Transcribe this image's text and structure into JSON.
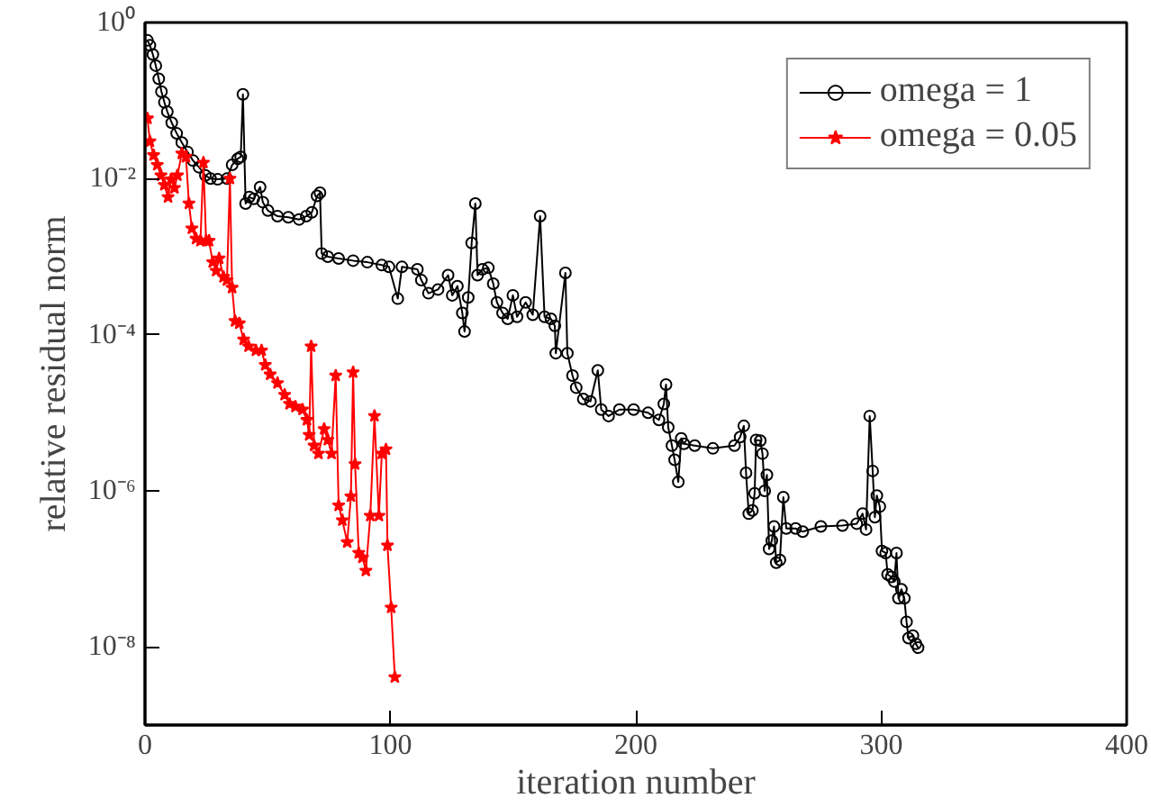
{
  "chart_data": {
    "type": "line",
    "xlabel": "iteration number",
    "ylabel": "relative residual norm",
    "log": "y",
    "xlim": [
      0,
      400
    ],
    "ylim": [
      1e-09,
      1
    ],
    "xticks": [
      0,
      100,
      200,
      300,
      400
    ],
    "yticks": [
      {
        "value": 1,
        "label": "10⁰"
      },
      {
        "value": 0.01,
        "label": "10⁻²"
      },
      {
        "value": 0.0001,
        "label": "10⁻⁴"
      },
      {
        "value": 1e-06,
        "label": "10⁻⁶"
      },
      {
        "value": 1e-08,
        "label": "10⁻⁸"
      }
    ],
    "grid": false,
    "legend": "top right",
    "series": [
      {
        "name": "omega = 1",
        "color": "#000000",
        "marker": "circle",
        "x": [
          1,
          2,
          3.2,
          4.4,
          5.6,
          6.7,
          7.9,
          9.1,
          10.9,
          12.9,
          15,
          17.3,
          19.6,
          22,
          24.6,
          26.7,
          29.6,
          33.4,
          35.5,
          37.8,
          39,
          39.9,
          41,
          42.5,
          44.3,
          46.9,
          48,
          50.1,
          54,
          58.4,
          62.8,
          65.7,
          68,
          70.1,
          71.3,
          72,
          74.5,
          78.9,
          84.8,
          90.6,
          96.5,
          99.4,
          103,
          104.7,
          111,
          112.6,
          115.5,
          119.4,
          123.5,
          125.2,
          127.3,
          129.3,
          130.2,
          131.7,
          133.1,
          134.6,
          135.5,
          137.5,
          139.9,
          141.9,
          143.4,
          145.7,
          147.8,
          149.9,
          151.6,
          155.1,
          158,
          161,
          162.8,
          165.4,
          167,
          167.4,
          171.3,
          172.1,
          174.2,
          175.7,
          178.6,
          181.5,
          184.5,
          185.9,
          188.9,
          193.3,
          199.1,
          205,
          209.4,
          211.4,
          212.3,
          213.2,
          214.7,
          215.8,
          217.3,
          218.5,
          219.6,
          224,
          231.4,
          240.2,
          242.5,
          244,
          244.9,
          246,
          247.5,
          248.4,
          249,
          250.7,
          251.6,
          252.5,
          253.4,
          254.3,
          255.4,
          256.3,
          257.2,
          258.7,
          260.1,
          261.3,
          265.1,
          268,
          275.4,
          284.2,
          290,
          292.4,
          293.8,
          295.3,
          296.5,
          297.4,
          298.2,
          299.4,
          300.3,
          301.8,
          302.6,
          304.1,
          305.3,
          306.2,
          307,
          308.2,
          309.4,
          310.3,
          311.1,
          312.9,
          314.1,
          315
        ],
        "values": [
          0.59,
          0.51,
          0.39,
          0.28,
          0.19,
          0.13,
          0.095,
          0.072,
          0.052,
          0.038,
          0.029,
          0.022,
          0.017,
          0.014,
          0.011,
          0.01,
          0.0098,
          0.01,
          0.015,
          0.018,
          0.019,
          0.12,
          0.0048,
          0.0058,
          0.0055,
          0.0078,
          0.005,
          0.0039,
          0.0033,
          0.0032,
          0.003,
          0.0033,
          0.0037,
          0.006,
          0.0066,
          0.0011,
          0.001,
          0.00095,
          0.00089,
          0.00085,
          0.00078,
          0.00074,
          0.00029,
          0.00074,
          0.00069,
          0.0005,
          0.00034,
          0.00038,
          0.00058,
          0.00032,
          0.00042,
          0.00019,
          0.00011,
          0.0003,
          0.0015,
          0.0048,
          0.00058,
          0.00069,
          0.00072,
          0.00045,
          0.00026,
          0.00019,
          0.00016,
          0.00032,
          0.00017,
          0.00026,
          0.00018,
          0.0033,
          0.00017,
          0.00016,
          0.00013,
          5.8e-05,
          0.00062,
          5.8e-05,
          3e-05,
          2.1e-05,
          1.5e-05,
          1.4e-05,
          3.5e-05,
          1.1e-05,
          9.1e-06,
          1.1e-05,
          1.1e-05,
          1e-05,
          8.1e-06,
          1.3e-05,
          2.3e-05,
          6.5e-06,
          3.8e-06,
          2.5e-06,
          1.3e-06,
          4.7e-06,
          4e-06,
          3.8e-06,
          3.5e-06,
          3.8e-06,
          4.9e-06,
          6.8e-06,
          1.7e-06,
          5.1e-07,
          5.6e-07,
          9.3e-07,
          4.5e-06,
          4.4e-06,
          3e-06,
          1e-06,
          1.6e-06,
          1.8e-07,
          2.3e-07,
          3.5e-07,
          1.2e-07,
          1.3e-07,
          8.3e-07,
          3.3e-07,
          3.3e-07,
          3e-07,
          3.5e-07,
          3.6e-07,
          3.8e-07,
          5.1e-07,
          3.2e-07,
          9.1e-06,
          1.8e-06,
          4.6e-07,
          8.7e-07,
          6.3e-07,
          1.7e-07,
          1.6e-07,
          8.5e-08,
          7.9e-08,
          6.9e-08,
          1.6e-07,
          4.2e-08,
          5.5e-08,
          4.2e-08,
          2.1e-08,
          1.3e-08,
          1.4e-08,
          1.1e-08,
          9.8e-09
        ]
      },
      {
        "name": "omega = 0.05",
        "color": "#ff0000",
        "marker": "star",
        "x": [
          1,
          2,
          3.5,
          5,
          6.5,
          7.9,
          9.4,
          10.6,
          12,
          13.2,
          15,
          16.7,
          17.9,
          19.1,
          20.8,
          22.6,
          23.8,
          24.9,
          26.1,
          27.6,
          29,
          30.2,
          32,
          33.4,
          34.6,
          35.5,
          36.7,
          38.4,
          40.2,
          42.2,
          45.2,
          47.5,
          49,
          51,
          54,
          56.9,
          58.9,
          61.3,
          64.2,
          66,
          66.9,
          67.7,
          68.9,
          70.7,
          73,
          74.5,
          76,
          77.7,
          78.9,
          80.4,
          82.4,
          83.9,
          84.8,
          85.6,
          87.1,
          88.6,
          90,
          91.8,
          93.5,
          95.3,
          96.5,
          98.2,
          98.8,
          100.3,
          101.8
        ],
        "values": [
          0.059,
          0.03,
          0.02,
          0.015,
          0.011,
          0.0083,
          0.0058,
          0.0098,
          0.0076,
          0.011,
          0.021,
          0.019,
          0.0048,
          0.0023,
          0.0017,
          0.0016,
          0.016,
          0.0016,
          0.0016,
          0.00085,
          0.00066,
          0.00095,
          0.00055,
          0.0005,
          0.01,
          0.0004,
          0.00015,
          0.00014,
          8.7e-05,
          7.1e-05,
          6.3e-05,
          6.3e-05,
          4.1e-05,
          3.1e-05,
          2.4e-05,
          1.7e-05,
          1.3e-05,
          1.2e-05,
          1.1e-05,
          8.1e-06,
          5.2e-06,
          7.1e-05,
          3.8e-06,
          3e-06,
          6.2e-06,
          4.5e-06,
          3e-06,
          3e-05,
          6.5e-07,
          4.2e-07,
          2.2e-07,
          8.5e-07,
          3.3e-05,
          2.2e-06,
          1.6e-07,
          1.4e-07,
          9.5e-08,
          4.8e-07,
          9.1e-06,
          4.8e-07,
          3e-06,
          3.4e-06,
          2e-07,
          3.2e-08,
          4.1e-09
        ]
      }
    ]
  }
}
